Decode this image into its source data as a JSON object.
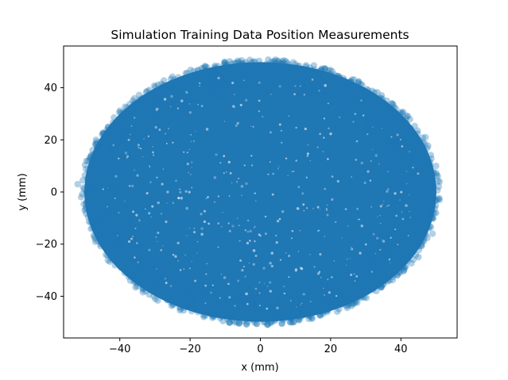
{
  "chart_data": {
    "type": "scatter",
    "title": "Simulation Training Data Position Measurements",
    "xlabel": "x (mm)",
    "ylabel": "y (mm)",
    "xlim": [
      -56,
      56
    ],
    "ylim": [
      -56,
      56
    ],
    "xticks": [
      -40,
      -20,
      0,
      20,
      40
    ],
    "yticks": [
      -40,
      -20,
      0,
      20,
      40
    ],
    "xtick_labels": [
      "−40",
      "−20",
      "0",
      "20",
      "40"
    ],
    "ytick_labels": [
      "−40",
      "−20",
      "0",
      "20",
      "40"
    ],
    "grid": false,
    "legend": "none",
    "marker_color": "#1f77b4",
    "marker_alpha": 0.35,
    "distribution": {
      "shape": "ellipse",
      "center": [
        0,
        0
      ],
      "x_radius": 51,
      "y_radius": 51
    },
    "series": [
      {
        "values_sample": [
          [
            -52,
            3
          ],
          [
            -50,
            -7
          ],
          [
            -49,
            12
          ],
          [
            -47,
            -18
          ],
          [
            -45,
            22
          ],
          [
            -42,
            -26
          ],
          [
            -40,
            28
          ],
          [
            -37,
            -32
          ],
          [
            -33,
            36
          ],
          [
            -29,
            -38
          ],
          [
            -26,
            41
          ],
          [
            -21,
            -44
          ],
          [
            -18,
            45
          ],
          [
            -14,
            -47
          ],
          [
            -10,
            48
          ],
          [
            -6,
            -50
          ],
          [
            -2,
            50
          ],
          [
            2,
            -51
          ],
          [
            5,
            50
          ],
          [
            9,
            -50
          ],
          [
            13,
            48
          ],
          [
            17,
            -47
          ],
          [
            21,
            45
          ],
          [
            25,
            -43
          ],
          [
            29,
            41
          ],
          [
            33,
            -38
          ],
          [
            36,
            35
          ],
          [
            39,
            -32
          ],
          [
            42,
            29
          ],
          [
            45,
            -25
          ],
          [
            47,
            21
          ],
          [
            49,
            -16
          ],
          [
            50,
            10
          ],
          [
            51,
            4
          ],
          [
            51,
            -3
          ],
          [
            50,
            -8
          ],
          [
            -51,
            -2
          ],
          [
            -48,
            6
          ],
          [
            0,
            0
          ],
          [
            -12,
            18
          ],
          [
            15,
            -22
          ],
          [
            28,
            9
          ],
          [
            -31,
            -11
          ],
          [
            6,
            33
          ],
          [
            -8,
            -35
          ],
          [
            22,
            24
          ]
        ]
      }
    ]
  }
}
